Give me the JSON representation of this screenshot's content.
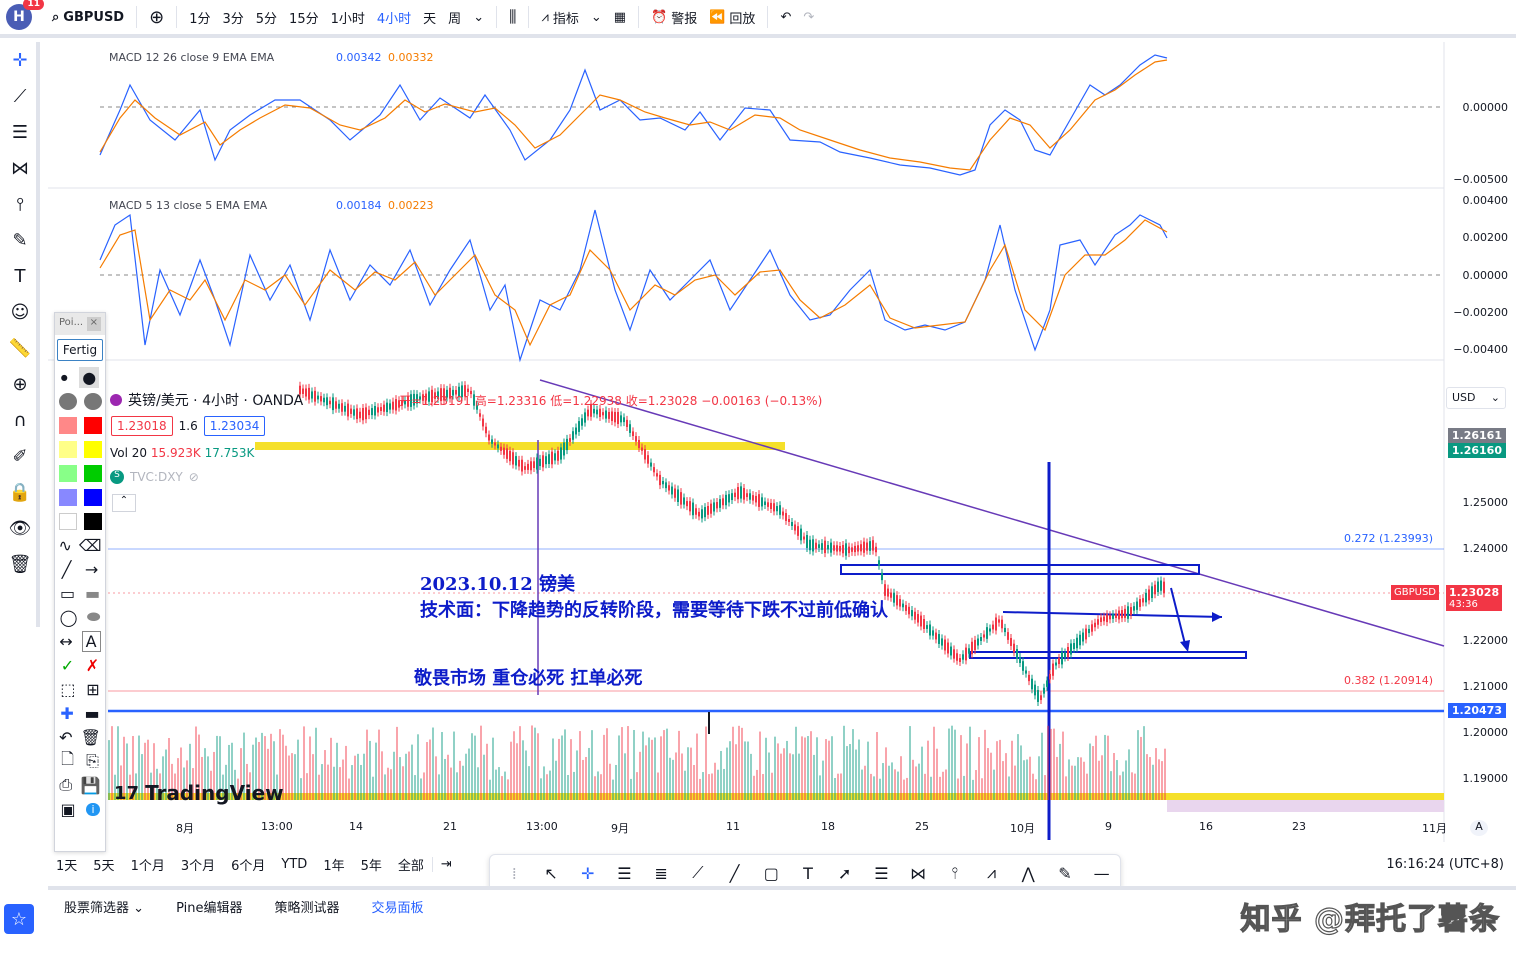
{
  "topbar": {
    "badge": "11",
    "logo": "H",
    "symbol": "GBPUSD",
    "intervals": [
      "1分",
      "3分",
      "5分",
      "15分",
      "1小时",
      "4小时",
      "天",
      "周"
    ],
    "active_interval": "4小时",
    "indicators_label": "指标",
    "alert_label": "警报",
    "replay_label": "回放"
  },
  "macd1": {
    "label": "MACD 12 26 close 9 EMA EMA",
    "v1": "0.00342",
    "v2": "0.00332",
    "ticks": [
      "0.00000",
      "−0.00500"
    ]
  },
  "macd2": {
    "label": "MACD 5 13 close 5 EMA EMA",
    "v1": "0.00184",
    "v2": "0.00223",
    "ticks": [
      "0.00400",
      "0.00200",
      "0.00000",
      "−0.00200",
      "−0.00400"
    ]
  },
  "legend": {
    "title": "英镑/美元 · 4小时 · OANDA",
    "ohlc": "开=1.23191 高=1.23316 低=1.22938 收=1.23028 −0.00163 (−0.13%)",
    "bid": "1.23018",
    "spread": "1.6",
    "ask": "1.23034",
    "vol_label": "Vol 20",
    "vol1": "15.923K",
    "vol2": "17.753K",
    "dxy": "TVC:DXY"
  },
  "price_axis": {
    "currency": "USD",
    "ticks": [
      "1.25000",
      "1.24000",
      "1.22000",
      "1.21000",
      "1.20000",
      "1.19000"
    ],
    "tag_gray": "1.26161",
    "tag_green": "1.26160",
    "tag_red_symbol": "GBPUSD",
    "tag_red_price": "1.23028",
    "tag_red_timer": "43:36",
    "tag_blue": "1.20473",
    "fib1": "0.272 (1.23993)",
    "fib2": "0.382 (1.20914)"
  },
  "time_axis": [
    "8月",
    "13:00",
    "14",
    "21",
    "13:00",
    "9月",
    "11",
    "18",
    "25",
    "10月",
    "9",
    "16",
    "23",
    "11月"
  ],
  "annotations": {
    "date_line": "2023.10.12 镑美",
    "tech_line": "技术面：下降趋势的反转阶段，需要等待下跌不过前低确认",
    "warn_line": "敬畏市场 重仓必死 扛单必死"
  },
  "palette": {
    "title": "Poi...",
    "fertig": "Fertig"
  },
  "bottombar": {
    "ranges": [
      "1天",
      "5天",
      "1个月",
      "3个月",
      "6个月",
      "YTD",
      "1年",
      "5年",
      "全部"
    ],
    "clock": "16:16:24 (UTC+8)"
  },
  "panelbar": {
    "items": [
      "股票筛选器",
      "Pine编辑器",
      "策略测试器",
      "交易面板"
    ]
  },
  "brand": "TradingView",
  "watermark": "知乎 @拜托了薯条"
}
